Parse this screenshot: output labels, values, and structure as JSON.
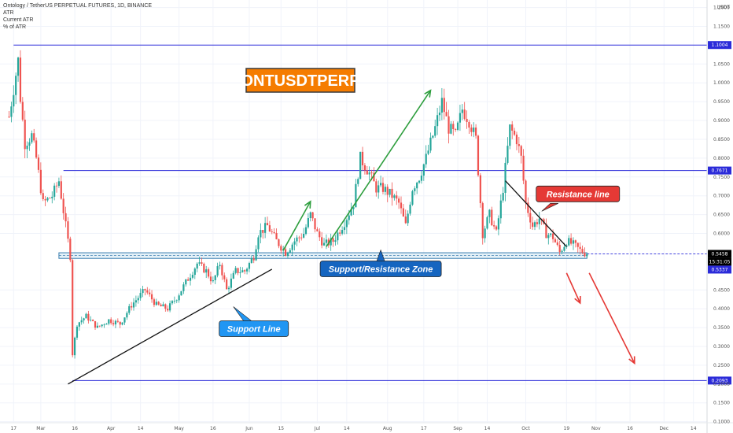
{
  "header": {
    "title": "Ontology / TetherUS PERPETUAL FUTURES, 1D, BINANCE",
    "indicators": [
      "ATR",
      "Current ATR",
      "% of ATR"
    ]
  },
  "axis_unit": "USDT",
  "colors": {
    "bull": "#26a69a",
    "bear": "#ef5350",
    "level_line": "#2b2bd9",
    "zone_fill": "#cfe6f3",
    "zone_border": "#3c7fb0",
    "title_bg": "#f57c00",
    "callout_blue": "#1565c0",
    "callout_lightblue": "#2196f3",
    "callout_red": "#e53935",
    "arrow_green": "#2e9e3e",
    "arrow_red": "#e53935",
    "trend_black": "#111111",
    "last_price": "#000000"
  },
  "chart_data": {
    "type": "candlestick",
    "title": "ONTUSDTPERP",
    "y_axis": {
      "ticks": [
        "1.2000",
        "1.1500",
        "1.1004",
        "1.0500",
        "1.0000",
        "0.9500",
        "0.9000",
        "0.8500",
        "0.8000",
        "0.7671",
        "0.7500",
        "0.7000",
        "0.6500",
        "0.6000",
        "0.5458",
        "0.5337",
        "0.4500",
        "0.4000",
        "0.3500",
        "0.3000",
        "0.2500",
        "0.2093",
        "0.2000",
        "0.1500",
        "0.1000"
      ],
      "plain_ticks": [
        1.2,
        1.15,
        1.05,
        1.0,
        0.95,
        0.9,
        0.85,
        0.8,
        0.75,
        0.7,
        0.65,
        0.6,
        0.45,
        0.4,
        0.35,
        0.3,
        0.25,
        0.2,
        0.15,
        0.1
      ],
      "range": [
        0.07,
        1.22
      ]
    },
    "x_axis": {
      "labels": [
        {
          "text": "17",
          "day": 0
        },
        {
          "text": "Mar",
          "day": 12
        },
        {
          "text": "16",
          "day": 27
        },
        {
          "text": "Apr",
          "day": 43
        },
        {
          "text": "14",
          "day": 56
        },
        {
          "text": "May",
          "day": 73
        },
        {
          "text": "16",
          "day": 88
        },
        {
          "text": "Jun",
          "day": 104
        },
        {
          "text": "15",
          "day": 118
        },
        {
          "text": "Jul",
          "day": 134
        },
        {
          "text": "14",
          "day": 147
        },
        {
          "text": "Aug",
          "day": 165
        },
        {
          "text": "17",
          "day": 181
        },
        {
          "text": "Sep",
          "day": 196
        },
        {
          "text": "14",
          "day": 209
        },
        {
          "text": "Oct",
          "day": 226
        },
        {
          "text": "19",
          "day": 244
        },
        {
          "text": "Nov",
          "day": 257
        },
        {
          "text": "16",
          "day": 272
        },
        {
          "text": "Dec",
          "day": 287
        },
        {
          "text": "14",
          "day": 300
        }
      ],
      "day_range": [
        -6,
        306
      ]
    },
    "levels": [
      {
        "label": "1.1004",
        "value": 1.1004,
        "from_day": 0
      },
      {
        "label": "0.7671",
        "value": 0.7671,
        "from_day": 22
      },
      {
        "label": "0.2093",
        "value": 0.2093,
        "from_day": 26
      }
    ],
    "price_labels": [
      {
        "label": "0.5458",
        "value": 0.5458,
        "style": "last"
      },
      {
        "label": "15:31:05",
        "value": 0.525,
        "style": "timer"
      },
      {
        "label": "0.5337",
        "value": 0.5337,
        "style": "level"
      }
    ],
    "zone": {
      "label": "Support/Resistance Zone",
      "low": 0.5337,
      "high": 0.5487,
      "from_day": 20,
      "to_day": 253
    },
    "trend_lines": [
      {
        "name": "Support Line",
        "from": [
          24,
          0.2
        ],
        "to": [
          114,
          0.505
        ]
      },
      {
        "name": "Resistance line",
        "from": [
          217,
          0.74
        ],
        "to": [
          244,
          0.565
        ]
      }
    ],
    "arrows": [
      {
        "color": "green",
        "from": [
          119,
          0.555
        ],
        "to": [
          131,
          0.685
        ]
      },
      {
        "color": "green",
        "from": [
          138,
          0.565
        ],
        "to": [
          184,
          0.98
        ]
      },
      {
        "color": "red",
        "from": [
          244,
          0.495
        ],
        "to": [
          250,
          0.415
        ]
      },
      {
        "color": "red",
        "from": [
          254,
          0.495
        ],
        "to": [
          274,
          0.255
        ]
      }
    ],
    "callouts": [
      {
        "text": "Support Line",
        "at": [
          106,
          0.347
        ],
        "style": "lightblue"
      },
      {
        "text": "Support/Resistance Zone",
        "at": [
          162,
          0.506
        ],
        "style": "blue"
      },
      {
        "text": "Resistance line",
        "at": [
          249,
          0.705
        ],
        "style": "red"
      }
    ],
    "anchors": [
      {
        "day": -2,
        "price": 0.91
      },
      {
        "day": 2,
        "price": 1.06
      },
      {
        "day": 3,
        "price": 0.96
      },
      {
        "day": 5,
        "price": 0.84
      },
      {
        "day": 8,
        "price": 0.86
      },
      {
        "day": 10,
        "price": 0.8
      },
      {
        "day": 13,
        "price": 0.68
      },
      {
        "day": 17,
        "price": 0.7
      },
      {
        "day": 20,
        "price": 0.74
      },
      {
        "day": 23,
        "price": 0.62
      },
      {
        "day": 25,
        "price": 0.54
      },
      {
        "day": 26,
        "price": 0.28
      },
      {
        "day": 28,
        "price": 0.36
      },
      {
        "day": 32,
        "price": 0.38
      },
      {
        "day": 37,
        "price": 0.35
      },
      {
        "day": 42,
        "price": 0.37
      },
      {
        "day": 47,
        "price": 0.36
      },
      {
        "day": 52,
        "price": 0.41
      },
      {
        "day": 58,
        "price": 0.45
      },
      {
        "day": 63,
        "price": 0.41
      },
      {
        "day": 68,
        "price": 0.4
      },
      {
        "day": 72,
        "price": 0.43
      },
      {
        "day": 77,
        "price": 0.48
      },
      {
        "day": 81,
        "price": 0.52
      },
      {
        "day": 85,
        "price": 0.5
      },
      {
        "day": 88,
        "price": 0.47
      },
      {
        "day": 91,
        "price": 0.52
      },
      {
        "day": 94,
        "price": 0.45
      },
      {
        "day": 98,
        "price": 0.5
      },
      {
        "day": 102,
        "price": 0.5
      },
      {
        "day": 106,
        "price": 0.54
      },
      {
        "day": 108,
        "price": 0.6
      },
      {
        "day": 112,
        "price": 0.62
      },
      {
        "day": 116,
        "price": 0.58
      },
      {
        "day": 120,
        "price": 0.55
      },
      {
        "day": 124,
        "price": 0.58
      },
      {
        "day": 128,
        "price": 0.6
      },
      {
        "day": 131,
        "price": 0.65
      },
      {
        "day": 134,
        "price": 0.6
      },
      {
        "day": 137,
        "price": 0.57
      },
      {
        "day": 141,
        "price": 0.58
      },
      {
        "day": 146,
        "price": 0.63
      },
      {
        "day": 150,
        "price": 0.68
      },
      {
        "day": 153,
        "price": 0.8
      },
      {
        "day": 157,
        "price": 0.76
      },
      {
        "day": 160,
        "price": 0.72
      },
      {
        "day": 163,
        "price": 0.72
      },
      {
        "day": 167,
        "price": 0.7
      },
      {
        "day": 170,
        "price": 0.68
      },
      {
        "day": 173,
        "price": 0.62
      },
      {
        "day": 176,
        "price": 0.72
      },
      {
        "day": 179,
        "price": 0.75
      },
      {
        "day": 182,
        "price": 0.8
      },
      {
        "day": 186,
        "price": 0.88
      },
      {
        "day": 189,
        "price": 0.95
      },
      {
        "day": 192,
        "price": 0.88
      },
      {
        "day": 195,
        "price": 0.86
      },
      {
        "day": 198,
        "price": 0.93
      },
      {
        "day": 201,
        "price": 0.9
      },
      {
        "day": 204,
        "price": 0.85
      },
      {
        "day": 207,
        "price": 0.6
      },
      {
        "day": 210,
        "price": 0.65
      },
      {
        "day": 213,
        "price": 0.6
      },
      {
        "day": 216,
        "price": 0.72
      },
      {
        "day": 219,
        "price": 0.88
      },
      {
        "day": 222,
        "price": 0.85
      },
      {
        "day": 224,
        "price": 0.8
      },
      {
        "day": 226,
        "price": 0.68
      },
      {
        "day": 229,
        "price": 0.62
      },
      {
        "day": 232,
        "price": 0.64
      },
      {
        "day": 235,
        "price": 0.6
      },
      {
        "day": 238,
        "price": 0.59
      },
      {
        "day": 241,
        "price": 0.55
      },
      {
        "day": 244,
        "price": 0.58
      },
      {
        "day": 247,
        "price": 0.57
      },
      {
        "day": 250,
        "price": 0.555
      },
      {
        "day": 253,
        "price": 0.546
      }
    ],
    "series": [
      {
        "kind": "candlestick",
        "from_day": -2,
        "to_day": 253,
        "last_close": 0.5458
      }
    ]
  }
}
